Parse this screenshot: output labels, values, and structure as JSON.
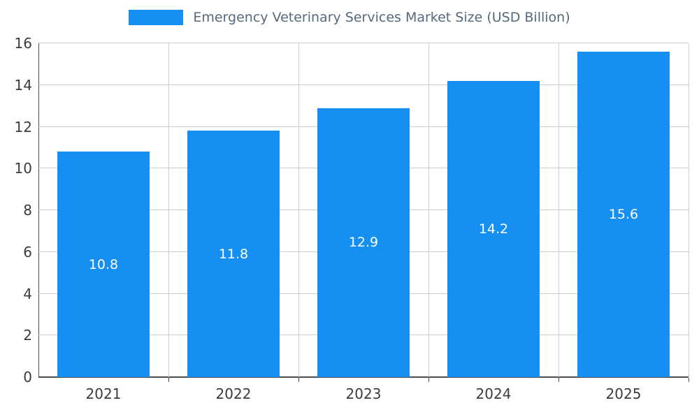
{
  "chart": {
    "title": "Emergency Veterinary Services Market Size (USD Billion)"
  },
  "chart_data": {
    "type": "bar",
    "title": "Emergency Veterinary Services Market Size (USD Billion)",
    "categories": [
      "2021",
      "2022",
      "2023",
      "2024",
      "2025"
    ],
    "values": [
      10.8,
      11.8,
      12.9,
      14.2,
      15.6
    ],
    "value_labels": [
      "10.8",
      "11.8",
      "12.9",
      "14.2",
      "15.6"
    ],
    "xlabel": "",
    "ylabel": "",
    "ylim": [
      0,
      16
    ],
    "ytick_step": 2,
    "ytick_labels": [
      "0",
      "2",
      "4",
      "6",
      "8",
      "10",
      "12",
      "14",
      "16"
    ],
    "grid": true,
    "legend_position": "top",
    "colors": {
      "bar": "#1590F2",
      "bar_label": "#FFFFFF",
      "title": "#56697B",
      "tick_label": "#3B3B3B",
      "grid": "#CCCCCC",
      "axis": "#4D4D4D",
      "background": "#FFFFFF"
    }
  }
}
